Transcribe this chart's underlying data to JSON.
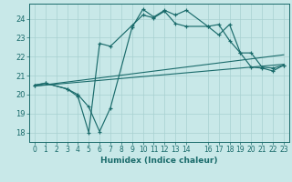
{
  "xlabel": "Humidex (Indice chaleur)",
  "xlim": [
    -0.5,
    23.5
  ],
  "ylim": [
    17.5,
    24.8
  ],
  "yticks": [
    18,
    19,
    20,
    21,
    22,
    23,
    24
  ],
  "xticks": [
    0,
    1,
    2,
    3,
    4,
    5,
    6,
    7,
    8,
    9,
    10,
    11,
    12,
    13,
    14,
    16,
    17,
    18,
    19,
    20,
    21,
    22,
    23
  ],
  "bg_color": "#c8e8e8",
  "grid_color": "#a8d0d0",
  "line_color": "#1a6b6b",
  "curve1_x": [
    0,
    1,
    3,
    4,
    5,
    6,
    7,
    9,
    10,
    11,
    12,
    13,
    14,
    16,
    17,
    18,
    19,
    20,
    21,
    22,
    23
  ],
  "curve1_y": [
    20.5,
    20.6,
    20.3,
    19.9,
    18.0,
    22.7,
    22.55,
    23.65,
    24.2,
    24.05,
    24.4,
    23.75,
    23.6,
    23.6,
    23.7,
    22.85,
    22.2,
    21.45,
    21.4,
    21.25,
    21.55
  ],
  "curve2_x": [
    0,
    1,
    3,
    4,
    5,
    6,
    7,
    9,
    10,
    11,
    12,
    13,
    14,
    16,
    17,
    18,
    19,
    20,
    21,
    22,
    23
  ],
  "curve2_y": [
    20.5,
    20.6,
    20.3,
    20.0,
    19.35,
    18.05,
    19.3,
    23.55,
    24.5,
    24.1,
    24.45,
    24.2,
    24.45,
    23.6,
    23.15,
    23.7,
    22.2,
    22.2,
    21.45,
    21.4,
    21.55
  ],
  "line3_x": [
    0,
    23
  ],
  "line3_y": [
    20.45,
    22.1
  ],
  "line4_x": [
    0,
    23
  ],
  "line4_y": [
    20.45,
    21.6
  ]
}
